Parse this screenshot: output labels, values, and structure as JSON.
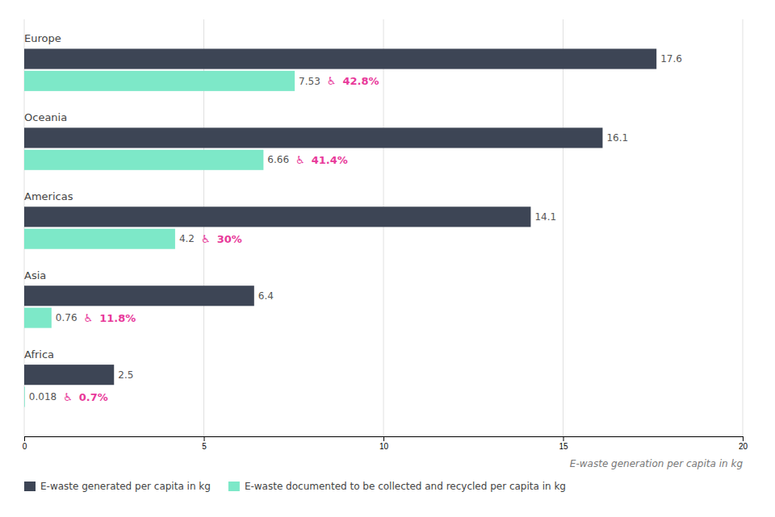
{
  "chart_data": {
    "type": "bar",
    "orientation": "horizontal",
    "x_label": "E-waste generation per capita in kg",
    "categories": [
      "Europe",
      "Oceania",
      "Americas",
      "Asia",
      "Africa"
    ],
    "series": [
      {
        "name": "E-waste generated per capita in kg",
        "color": "#3d4555",
        "values": [
          17.6,
          16.1,
          14.1,
          6.4,
          2.5
        ]
      },
      {
        "name": "E-waste documented to be collected and recycled per capita in kg",
        "color": "#7de8c8",
        "values": [
          7.53,
          6.66,
          4.2,
          0.76,
          0.018
        ]
      }
    ],
    "annotations": [
      {
        "category": "Europe",
        "text": "♿",
        "color": "#e8399a"
      },
      {
        "category": "Europe",
        "text": "42.8%",
        "color": "#e8399a"
      },
      {
        "category": "Oceania",
        "text": "♿",
        "color": "#e8399a"
      },
      {
        "category": "Oceania",
        "text": "41.4%",
        "color": "#e8399a"
      },
      {
        "category": "Americas",
        "text": "♿",
        "color": "#e8399a"
      },
      {
        "category": "Americas",
        "text": "30%",
        "color": "#e8399a"
      },
      {
        "category": "Asia",
        "text": "♿",
        "color": "#e8399a"
      },
      {
        "category": "Asia",
        "text": "11.8%",
        "color": "#e8399a"
      },
      {
        "category": "Africa",
        "text": "♿",
        "color": "#e8399a"
      },
      {
        "category": "Africa",
        "text": "0.7%",
        "color": "#e8399a"
      }
    ],
    "xlim": [
      0,
      20
    ],
    "xticks": [
      0,
      5,
      10,
      15,
      20
    ],
    "grid": true,
    "data_labels": true,
    "legend": "bottom"
  }
}
